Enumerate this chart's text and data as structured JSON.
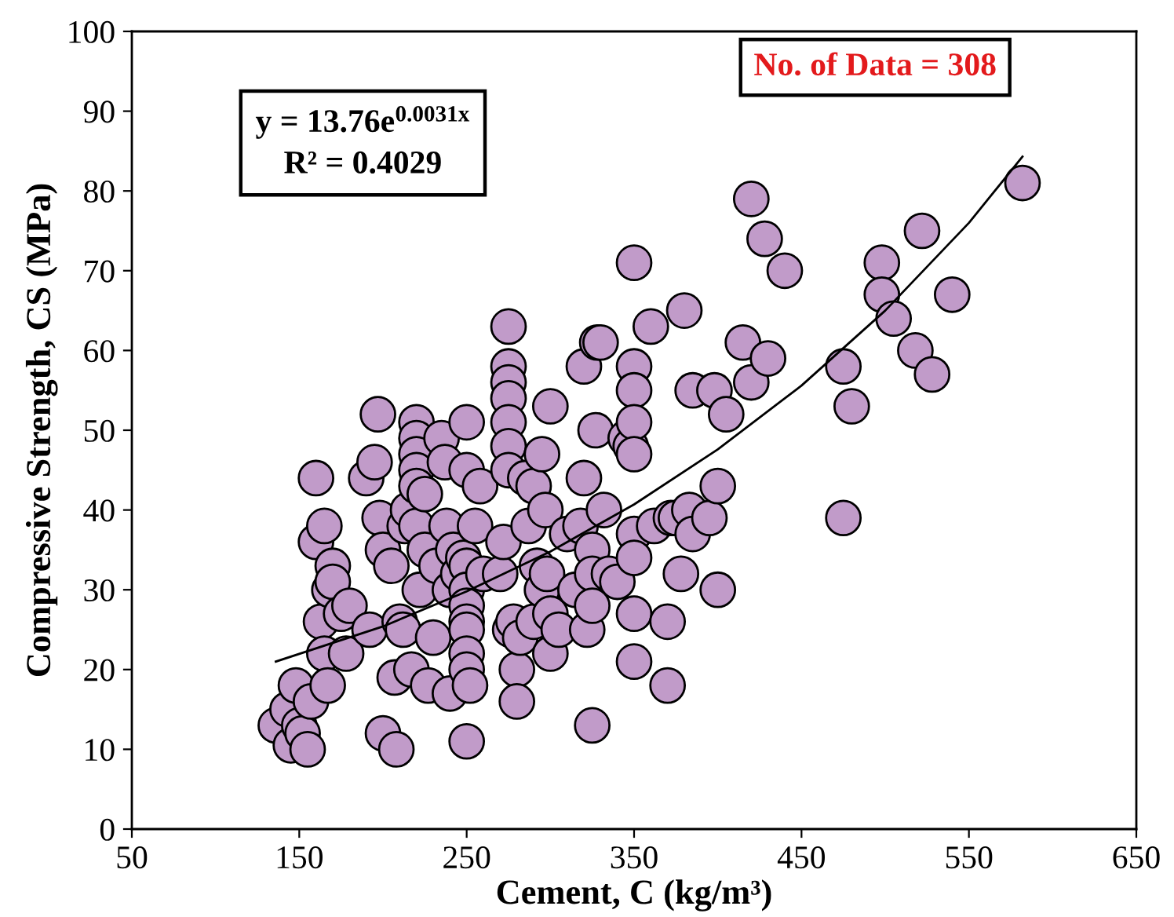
{
  "chart_data": {
    "type": "scatter",
    "xlabel": "Cement, C (kg/m³)",
    "ylabel": "Compressive Strength, CS (MPa)",
    "xlim": [
      50,
      650
    ],
    "xticks": [
      50,
      150,
      250,
      350,
      450,
      550,
      650
    ],
    "ylim": [
      0,
      100
    ],
    "yticks": [
      0,
      10,
      20,
      30,
      40,
      50,
      60,
      70,
      80,
      90,
      100
    ],
    "grid": false,
    "legend": false,
    "marker": "circle",
    "annotations": [
      "y = 13.76e$^{0.0031x}$\nR² = 0.4029",
      "No. of Data = 308"
    ],
    "series": [
      {
        "color": "#c19bc9",
        "x": [
          136,
          143,
          145,
          148,
          150,
          152,
          155,
          157,
          160,
          160,
          163,
          165,
          165,
          167,
          168,
          170,
          170,
          175,
          178,
          180,
          190,
          192,
          195,
          197,
          198,
          200,
          200,
          205,
          207,
          208,
          210,
          212,
          213,
          215,
          217,
          220,
          220,
          220,
          220,
          220,
          220,
          222,
          225,
          225,
          227,
          230,
          232,
          235,
          237,
          238,
          240,
          240,
          242,
          245,
          248,
          250,
          250,
          250,
          250,
          250,
          250,
          250,
          250,
          250,
          250,
          252,
          255,
          258,
          260,
          270,
          272,
          275,
          275,
          275,
          275,
          275,
          275,
          275,
          276,
          278,
          280,
          280,
          282,
          285,
          287,
          290,
          290,
          292,
          295,
          295,
          297,
          298,
          300,
          300,
          300,
          305,
          310,
          315,
          318,
          320,
          320,
          322,
          325,
          325,
          325,
          325,
          327,
          328,
          330,
          332,
          335,
          340,
          345,
          348,
          350,
          350,
          350,
          350,
          350,
          350,
          350,
          350,
          350,
          360,
          362,
          370,
          370,
          372,
          375,
          378,
          380,
          383,
          385,
          385,
          395,
          398,
          400,
          400,
          405,
          415,
          420,
          420,
          428,
          430,
          440,
          475,
          475,
          480,
          498,
          498,
          505,
          518,
          522,
          528,
          540,
          582
        ],
        "values": [
          13,
          15,
          10.5,
          18,
          13,
          12,
          10,
          16,
          44,
          36,
          26,
          38,
          22,
          18,
          30,
          33,
          31,
          27,
          22,
          28,
          44,
          25,
          46,
          52,
          39,
          35,
          12,
          33,
          19,
          10,
          26,
          25,
          38,
          40,
          20,
          51,
          49,
          47,
          45,
          43,
          38,
          30,
          42,
          35,
          18,
          24,
          33,
          49,
          46,
          38,
          30,
          17,
          35,
          32,
          34,
          51,
          45,
          33,
          30,
          28,
          26,
          25,
          22,
          20,
          11,
          18,
          38,
          43,
          32,
          32,
          36,
          63,
          58,
          56,
          54,
          51,
          48,
          45,
          25,
          26,
          20,
          16,
          24,
          44,
          38,
          43,
          26,
          33,
          30,
          47,
          40,
          32,
          53,
          27,
          22,
          25,
          37,
          30,
          38,
          58,
          44,
          25,
          35,
          32,
          28,
          13,
          50,
          61,
          61,
          40,
          32,
          31,
          49,
          48,
          71,
          58,
          55,
          51,
          47,
          37,
          34,
          27,
          21,
          63,
          38,
          26,
          18,
          39,
          39,
          32,
          65,
          40,
          37,
          55,
          39,
          55,
          43,
          30,
          52,
          61,
          79,
          56,
          74,
          59,
          70,
          58,
          39,
          53,
          71,
          67,
          64,
          60,
          75,
          57,
          67,
          81
        ]
      },
      {
        "type": "line",
        "color": "#000000",
        "marker": "none",
        "x": [
          136,
          200,
          250,
          300,
          350,
          400,
          450,
          500,
          550,
          582
        ],
        "values": [
          21,
          25.4,
          29.8,
          34.8,
          40.7,
          47.6,
          55.6,
          65,
          76,
          84.3
        ]
      }
    ]
  }
}
